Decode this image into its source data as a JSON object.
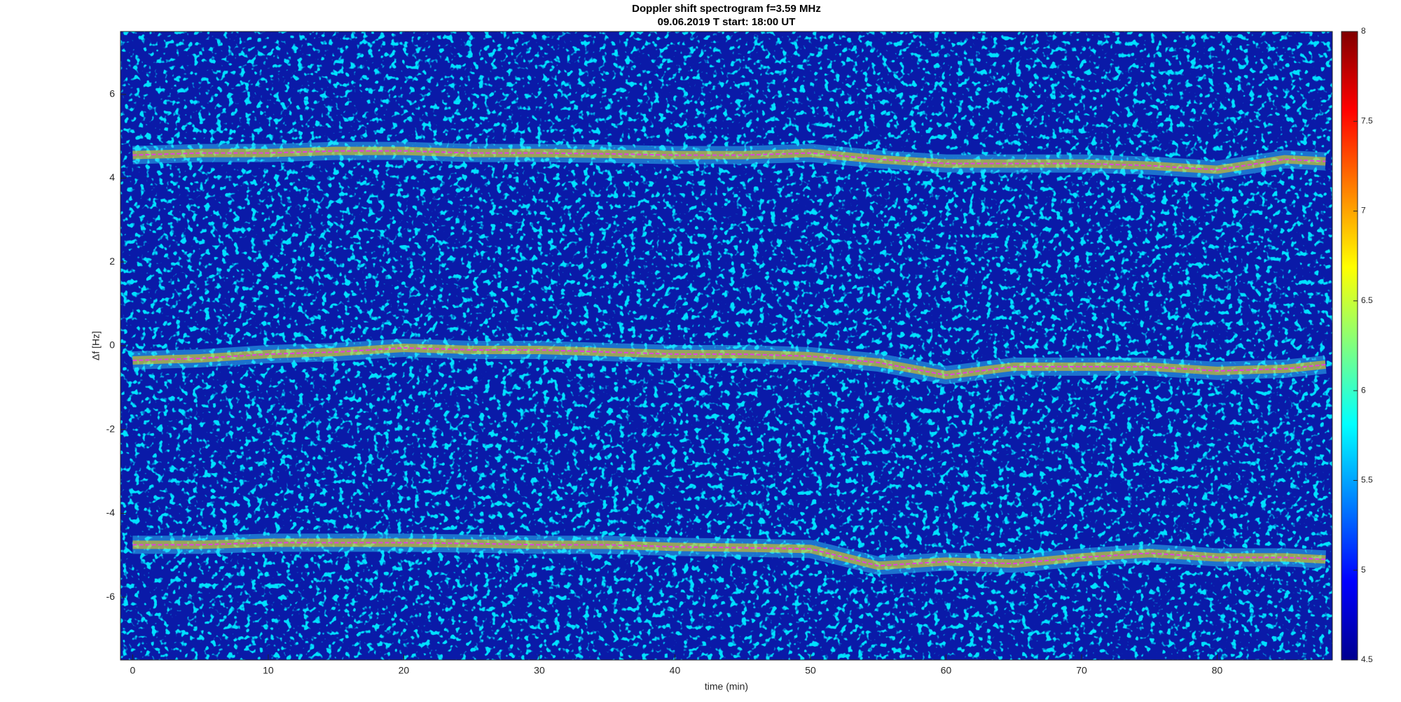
{
  "chart_data": {
    "type": "spectrogram",
    "title": "Doppler shift spectrogram f=3.59 MHz",
    "subtitle": "09.06.2019   T start: 18:00 UT",
    "x_label": "time (min)",
    "y_label": "Δf [Hz]",
    "xlim": [
      -0.9,
      88.5
    ],
    "xticks": [
      0,
      10,
      20,
      30,
      40,
      50,
      60,
      70,
      80
    ],
    "ylim": [
      -7.5,
      7.5
    ],
    "yticks": [
      -6,
      -4,
      -2,
      0,
      2,
      4,
      6
    ],
    "x": [
      0,
      5,
      10,
      15,
      20,
      25,
      30,
      35,
      40,
      45,
      50,
      55,
      60,
      65,
      70,
      75,
      80,
      85,
      88
    ],
    "series": [
      {
        "name": "upper trace",
        "color": "#e040e0",
        "values": [
          4.55,
          4.6,
          4.6,
          4.65,
          4.65,
          4.6,
          4.6,
          4.58,
          4.55,
          4.55,
          4.6,
          4.45,
          4.35,
          4.35,
          4.35,
          4.3,
          4.2,
          4.45,
          4.4
        ]
      },
      {
        "name": "middle trace",
        "color": "#e040e0",
        "values": [
          -0.35,
          -0.3,
          -0.2,
          -0.15,
          -0.05,
          -0.1,
          -0.1,
          -0.15,
          -0.2,
          -0.2,
          -0.25,
          -0.4,
          -0.7,
          -0.5,
          -0.5,
          -0.5,
          -0.6,
          -0.55,
          -0.45
        ]
      },
      {
        "name": "lower trace",
        "color": "#e040e0",
        "values": [
          -4.75,
          -4.75,
          -4.7,
          -4.7,
          -4.7,
          -4.72,
          -4.75,
          -4.75,
          -4.8,
          -4.82,
          -4.85,
          -5.25,
          -5.15,
          -5.2,
          -5.05,
          -4.95,
          -5.05,
          -5.05,
          -5.1
        ]
      }
    ],
    "colorbar": {
      "lim": [
        4.5,
        8
      ],
      "ticks": [
        4.5,
        5,
        5.5,
        6,
        6.5,
        7,
        7.5,
        8
      ]
    }
  }
}
